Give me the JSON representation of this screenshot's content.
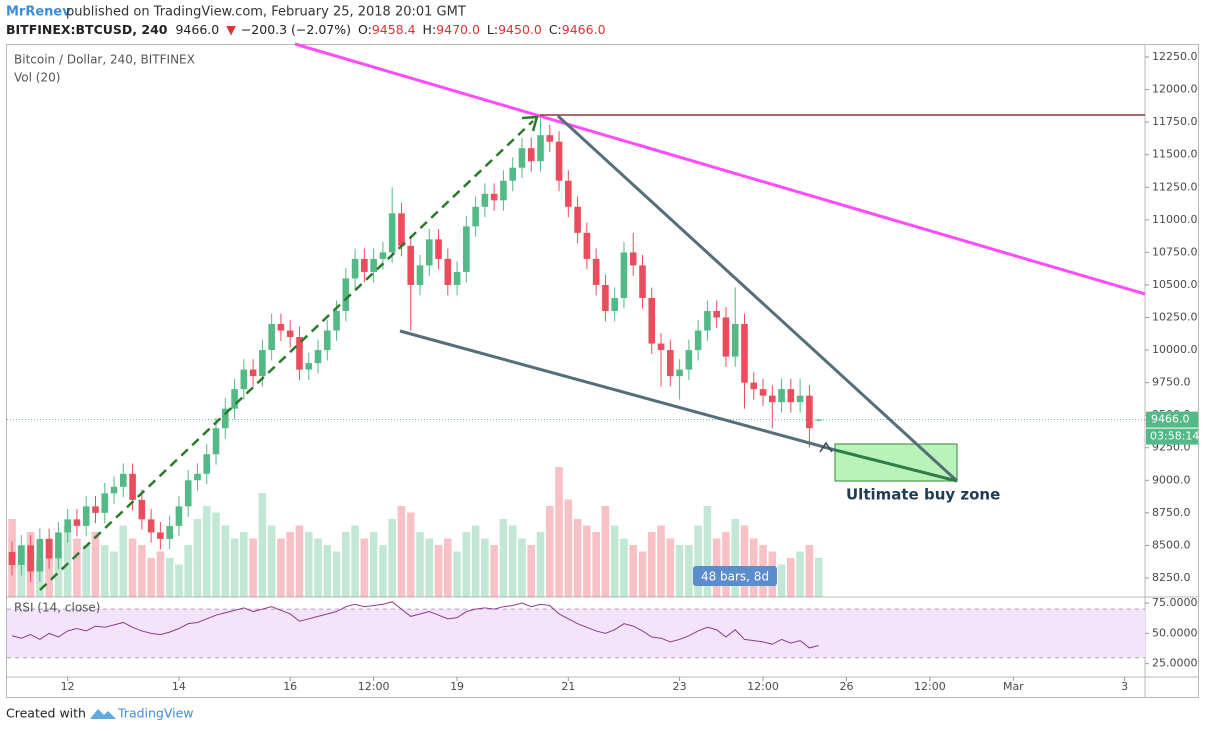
{
  "header": {
    "author": "MrRenev",
    "published": "published on TradingView.com, February 25, 2018 20:01 GMT",
    "symbol": "BITFINEX:BTCUSD, 240",
    "last": "9466.0",
    "arrow": "▼",
    "change": "−200.3 (−2.07%)",
    "ohlc": [
      {
        "label": "O:",
        "value": "9458.4"
      },
      {
        "label": "H:",
        "value": "9470.0"
      },
      {
        "label": "L:",
        "value": "9450.0"
      },
      {
        "label": "C:",
        "value": "9466.0"
      }
    ]
  },
  "footer": {
    "created": "Created with",
    "brand": "TradingView"
  },
  "chart_data": {
    "type": "candlestick",
    "title": "Bitcoin / Dollar, 240, BITFINEX",
    "volume_title": "Vol (20)",
    "rsi_title": "RSI (14, close)",
    "up_color": "#53b987",
    "down_color": "#eb4d5c",
    "xlim": [
      -1.3,
      122.2
    ],
    "xticks": [
      {
        "value": 6,
        "label": "12"
      },
      {
        "value": 18,
        "label": "14"
      },
      {
        "value": 30,
        "label": "16"
      },
      {
        "value": 39,
        "label": "12:00"
      },
      {
        "value": 48,
        "label": "19"
      },
      {
        "value": 60,
        "label": "21"
      },
      {
        "value": 72,
        "label": "23"
      },
      {
        "value": 81,
        "label": "12:00"
      },
      {
        "value": 90,
        "label": "26"
      },
      {
        "value": 99,
        "label": "12:00"
      },
      {
        "value": 108,
        "label": "Mar"
      },
      {
        "value": 120,
        "label": "3"
      }
    ],
    "ylim": [
      8104,
      12350
    ],
    "yticks": [
      {
        "value": 8250,
        "label": "8250.0"
      },
      {
        "value": 8500,
        "label": "8500.0"
      },
      {
        "value": 8750,
        "label": "8750.0"
      },
      {
        "value": 9000,
        "label": "9000.0"
      },
      {
        "value": 9250,
        "label": "9250.0"
      },
      {
        "value": 9500,
        "label": "9500.0"
      },
      {
        "value": 9750,
        "label": "9750.0"
      },
      {
        "value": 10000,
        "label": "10000.0"
      },
      {
        "value": 10250,
        "label": "10250.0"
      },
      {
        "value": 10500,
        "label": "10500.0"
      },
      {
        "value": 10750,
        "label": "10750.0"
      },
      {
        "value": 11000,
        "label": "11000.0"
      },
      {
        "value": 11250,
        "label": "11250.0"
      },
      {
        "value": 11500,
        "label": "11500.0"
      },
      {
        "value": 11750,
        "label": "11750.0"
      },
      {
        "value": 12000,
        "label": "12000.0"
      },
      {
        "value": 12250,
        "label": "12250.0"
      }
    ],
    "last_price": {
      "value": 9466,
      "label": "9466.0",
      "countdown": "03:58:14"
    },
    "candles": {
      "open": [
        8450,
        8350,
        8500,
        8300,
        8550,
        8400,
        8600,
        8700,
        8650,
        8800,
        8750,
        8900,
        8950,
        9050,
        8850,
        8700,
        8600,
        8550,
        8650,
        8800,
        9000,
        9050,
        9200,
        9400,
        9550,
        9700,
        9850,
        9800,
        10000,
        10200,
        10150,
        10100,
        9850,
        9900,
        10000,
        10150,
        10300,
        10550,
        10700,
        10600,
        10700,
        10750,
        11050,
        10800,
        10500,
        10650,
        10850,
        10700,
        10500,
        10600,
        10950,
        11100,
        11200,
        11150,
        11300,
        11400,
        11550,
        11450,
        11650,
        11600,
        11300,
        11100,
        10900,
        10700,
        10500,
        10300,
        10400,
        10750,
        10650,
        10400,
        10050,
        10000,
        9800,
        9850,
        10000,
        10150,
        10300,
        10250,
        9950,
        10200,
        9750,
        9700,
        9650,
        9600,
        9700,
        9600,
        9650,
        9458.4
      ],
      "high": [
        8530,
        8580,
        8580,
        8630,
        8630,
        8680,
        8780,
        8780,
        8880,
        8880,
        8980,
        9030,
        9130,
        9130,
        8930,
        8780,
        8680,
        8730,
        8880,
        9080,
        9130,
        9280,
        9480,
        9630,
        9780,
        9930,
        9930,
        10080,
        10280,
        10280,
        10230,
        10180,
        9980,
        10080,
        10230,
        10380,
        10630,
        10780,
        10780,
        10780,
        10830,
        11250,
        11130,
        10880,
        10730,
        10930,
        10930,
        10780,
        10680,
        11030,
        11180,
        11280,
        11280,
        11380,
        11480,
        11630,
        11630,
        11790,
        11730,
        11680,
        11380,
        11180,
        10980,
        10780,
        10580,
        10480,
        10830,
        10900,
        10730,
        10480,
        10130,
        10080,
        9930,
        10080,
        10230,
        10380,
        10380,
        10330,
        10480,
        10280,
        9830,
        9780,
        9730,
        9780,
        9780,
        9780,
        9730,
        9470
      ],
      "low": [
        8270,
        8270,
        8220,
        8220,
        8320,
        8320,
        8520,
        8570,
        8570,
        8670,
        8670,
        8820,
        8870,
        8770,
        8620,
        8520,
        8470,
        8470,
        8570,
        8720,
        8920,
        8970,
        9120,
        9320,
        9470,
        9620,
        9720,
        9720,
        9920,
        10070,
        10020,
        9770,
        9770,
        9820,
        9920,
        10070,
        10220,
        10470,
        10520,
        10520,
        10620,
        10670,
        10720,
        10150,
        10420,
        10570,
        10620,
        10420,
        10420,
        10520,
        10870,
        11020,
        11070,
        11070,
        11220,
        11320,
        11370,
        11370,
        11520,
        11220,
        11020,
        10820,
        10620,
        10420,
        10220,
        10220,
        10320,
        10570,
        10320,
        9970,
        9720,
        9720,
        9620,
        9770,
        9920,
        10070,
        10170,
        9870,
        9870,
        9550,
        9620,
        9570,
        9400,
        9520,
        9520,
        9520,
        9250,
        9450
      ],
      "close": [
        8350,
        8500,
        8300,
        8550,
        8400,
        8600,
        8700,
        8650,
        8800,
        8750,
        8900,
        8950,
        9050,
        8850,
        8700,
        8600,
        8550,
        8650,
        8800,
        9000,
        9050,
        9200,
        9400,
        9550,
        9700,
        9850,
        9800,
        10000,
        10200,
        10150,
        10100,
        9850,
        9900,
        10000,
        10150,
        10300,
        10550,
        10700,
        10600,
        10700,
        10750,
        11050,
        10800,
        10500,
        10650,
        10850,
        10700,
        10500,
        10600,
        10950,
        11100,
        11200,
        11150,
        11300,
        11400,
        11550,
        11450,
        11650,
        11600,
        11300,
        11100,
        10900,
        10700,
        10500,
        10300,
        10400,
        10750,
        10650,
        10400,
        10050,
        10000,
        9800,
        9850,
        10000,
        10150,
        10300,
        10250,
        9950,
        10200,
        9750,
        9700,
        9650,
        9600,
        9700,
        9600,
        9650,
        9400,
        9466
      ]
    },
    "volume": [
      60,
      40,
      50,
      30,
      45,
      35,
      55,
      45,
      40,
      50,
      40,
      35,
      55,
      45,
      40,
      30,
      35,
      30,
      25,
      40,
      60,
      70,
      65,
      55,
      45,
      50,
      45,
      80,
      55,
      45,
      50,
      55,
      50,
      45,
      40,
      35,
      50,
      55,
      45,
      50,
      40,
      60,
      70,
      65,
      50,
      45,
      40,
      45,
      35,
      50,
      55,
      45,
      40,
      60,
      55,
      45,
      40,
      50,
      70,
      100,
      75,
      60,
      55,
      50,
      70,
      55,
      45,
      40,
      35,
      50,
      55,
      45,
      40,
      40,
      55,
      70,
      45,
      50,
      60,
      55,
      45,
      40,
      35,
      25,
      30,
      35,
      40,
      30
    ],
    "rsi": [
      48,
      46,
      49,
      45,
      50,
      47,
      52,
      54,
      52,
      56,
      55,
      57,
      59,
      55,
      52,
      50,
      49,
      51,
      54,
      58,
      59,
      62,
      65,
      67,
      69,
      71,
      68,
      70,
      72,
      69,
      66,
      60,
      62,
      64,
      66,
      68,
      72,
      74,
      72,
      73,
      74,
      76,
      70,
      64,
      66,
      68,
      65,
      62,
      63,
      68,
      70,
      71,
      70,
      72,
      73,
      75,
      72,
      74,
      73,
      66,
      62,
      58,
      55,
      52,
      50,
      53,
      58,
      56,
      52,
      47,
      46,
      43,
      45,
      48,
      52,
      55,
      53,
      47,
      53,
      45,
      44,
      43,
      41,
      45,
      42,
      44,
      38,
      40
    ],
    "rsi_ylim": [
      14,
      80
    ],
    "rsi_yticks": [
      {
        "value": 25,
        "label": "25.0000"
      },
      {
        "value": 50,
        "label": "50.0000"
      },
      {
        "value": 75,
        "label": "75.0000"
      }
    ],
    "rsi_band": [
      30,
      70
    ],
    "annotations": {
      "zone": "Ultimate buy zone",
      "range": "48 bars, 8d"
    }
  }
}
